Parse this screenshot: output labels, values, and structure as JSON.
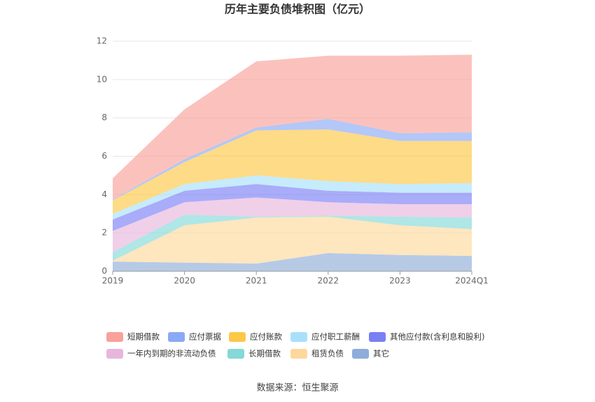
{
  "chart_data": {
    "type": "stacked_area",
    "title": "历年主要负债堆积图（亿元）",
    "categories": [
      "2019",
      "2020",
      "2021",
      "2022",
      "2023",
      "2024Q1"
    ],
    "series": [
      {
        "name": "短期借款",
        "color": "#f9a19a",
        "values": [
          1.1,
          2.6,
          3.45,
          3.3,
          4.05,
          4.05
        ]
      },
      {
        "name": "应付票据",
        "color": "#8aa9f5",
        "values": [
          0.05,
          0.15,
          0.15,
          0.55,
          0.4,
          0.45
        ]
      },
      {
        "name": "应付账款",
        "color": "#fcc847",
        "values": [
          0.7,
          1.15,
          2.35,
          2.7,
          2.25,
          2.2
        ]
      },
      {
        "name": "应付职工薪酬",
        "color": "#a8e0fb",
        "values": [
          0.3,
          0.35,
          0.45,
          0.5,
          0.45,
          0.5
        ]
      },
      {
        "name": "其他应付款(含利息和股利)",
        "color": "#7b7ff4",
        "values": [
          0.6,
          0.6,
          0.7,
          0.6,
          0.6,
          0.6
        ]
      },
      {
        "name": "一年内到期的非流动负债",
        "color": "#e8b6dd",
        "values": [
          1.1,
          0.65,
          1.0,
          0.7,
          0.65,
          0.7
        ]
      },
      {
        "name": "长期借款",
        "color": "#84d8d8",
        "values": [
          0.45,
          0.55,
          0.05,
          0.05,
          0.45,
          0.6
        ]
      },
      {
        "name": "租赁负债",
        "color": "#fdd89c",
        "values": [
          0.05,
          1.95,
          2.4,
          1.9,
          1.55,
          1.4
        ]
      },
      {
        "name": "其它",
        "color": "#8fadd9",
        "values": [
          0.5,
          0.45,
          0.4,
          0.95,
          0.85,
          0.8
        ]
      }
    ],
    "ylim": [
      0,
      12
    ],
    "yticks": [
      0,
      2,
      4,
      6,
      8,
      10,
      12
    ],
    "grid": true,
    "source": "数据来源：恒生聚源"
  }
}
